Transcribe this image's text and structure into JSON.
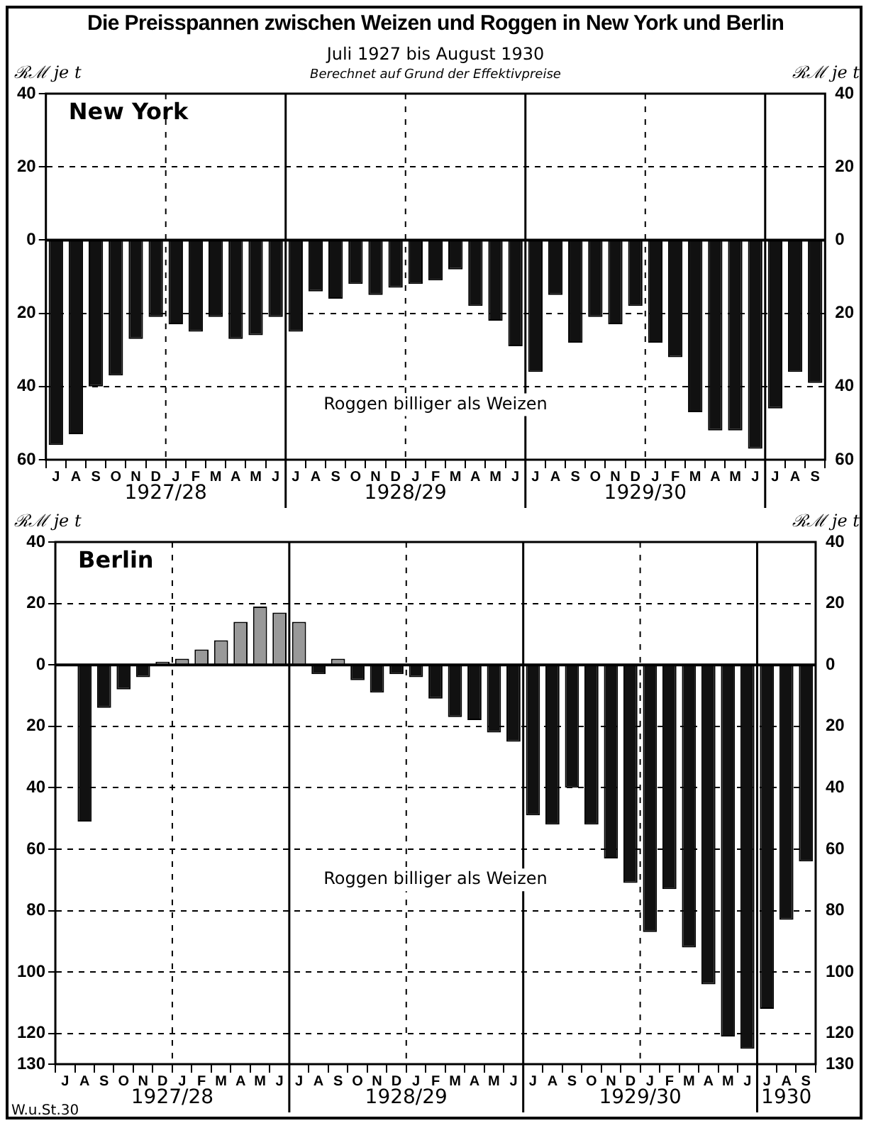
{
  "chart_data": [
    {
      "type": "bar",
      "title": "Die Preisspannen zwischen Weizen und Roggen in New York und Berlin",
      "subtitle": "Juli 1927 bis August 1930",
      "ylabel": "ℛℳ je t",
      "y2label": "ℛℳ je t",
      "annotations": [
        "Berechnet auf Grund der Effektivpreise",
        "Roggen billiger als Weizen",
        "1927/28",
        "1928/29",
        "1929/30"
      ],
      "categories": [
        "J",
        "A",
        "S",
        "O",
        "N",
        "D",
        "J",
        "F",
        "M",
        "A",
        "M",
        "J",
        "J",
        "A",
        "S",
        "O",
        "N",
        "D",
        "J",
        "F",
        "M",
        "A",
        "M",
        "J",
        "J",
        "A",
        "S",
        "O",
        "N",
        "D",
        "J",
        "F",
        "M",
        "A",
        "M",
        "J",
        "J",
        "A",
        "S"
      ],
      "series": [
        {
          "name": "New York",
          "color": "#111111",
          "values": [
            -56,
            -53,
            -40,
            -37,
            -27,
            -21,
            -23,
            -25,
            -21,
            -27,
            -26,
            -21,
            -25,
            -14,
            -16,
            -12,
            -15,
            -13,
            -12,
            -11,
            -8,
            -18,
            -22,
            -29,
            -36,
            -15,
            -28,
            -21,
            -23,
            -18,
            -28,
            -32,
            -47,
            -52,
            -52,
            -57,
            -46,
            -36,
            -39
          ]
        }
      ],
      "ylim": [
        -60,
        40
      ],
      "yticks": [
        {
          "value": -60,
          "label": "60"
        },
        {
          "value": -40,
          "label": "40"
        },
        {
          "value": -20,
          "label": "20"
        },
        0,
        20,
        40
      ],
      "y2lim": [
        -60,
        40
      ],
      "y2ticks": [
        {
          "value": -60,
          "label": "60"
        },
        {
          "value": -40,
          "label": "40"
        },
        {
          "value": -20,
          "label": "20"
        },
        0,
        20,
        40
      ],
      "grid": "y",
      "legend": false
    },
    {
      "type": "bar",
      "ylabel": "ℛℳ je t",
      "y2label": "ℛℳ je t",
      "annotations": [
        "Roggen billiger als Weizen",
        "1927/28",
        "1928/29",
        "1929/30",
        "1930",
        "W.u.St.30"
      ],
      "categories": [
        "J",
        "A",
        "S",
        "O",
        "N",
        "D",
        "J",
        "F",
        "M",
        "A",
        "M",
        "J",
        "J",
        "A",
        "S",
        "O",
        "N",
        "D",
        "J",
        "F",
        "M",
        "A",
        "M",
        "J",
        "J",
        "A",
        "S",
        "O",
        "N",
        "D",
        "J",
        "F",
        "M",
        "A",
        "M",
        "J",
        "J",
        "A",
        "S"
      ],
      "series": [
        {
          "name": "Berlin",
          "values": [
            null,
            -51,
            -14,
            -8,
            -4,
            1,
            2,
            5,
            8,
            14,
            19,
            17,
            14,
            -3,
            2,
            -5,
            -9,
            -3,
            -4,
            -11,
            -17,
            -18,
            -22,
            -25,
            -49,
            -52,
            -40,
            -52,
            -63,
            -71,
            -87,
            -73,
            -92,
            -104,
            -121,
            -125,
            -112,
            -83,
            -64
          ],
          "colors": [
            "#111111",
            "#111111",
            "#111111",
            "#111111",
            "#111111",
            "#999999",
            "#999999",
            "#999999",
            "#999999",
            "#999999",
            "#999999",
            "#999999",
            "#999999",
            "#111111",
            "#999999",
            "#111111",
            "#111111",
            "#111111",
            "#111111",
            "#111111",
            "#111111",
            "#111111",
            "#111111",
            "#111111",
            "#111111",
            "#111111",
            "#111111",
            "#111111",
            "#111111",
            "#111111",
            "#111111",
            "#111111",
            "#111111",
            "#111111",
            "#111111",
            "#111111",
            "#111111",
            "#111111",
            "#111111"
          ]
        }
      ],
      "ylim": [
        -130,
        40
      ],
      "yticks": [
        {
          "value": -130,
          "label": "130"
        },
        {
          "value": -120,
          "label": "120"
        },
        {
          "value": -100,
          "label": "100"
        },
        {
          "value": -80,
          "label": "80"
        },
        {
          "value": -60,
          "label": "60"
        },
        {
          "value": -40,
          "label": "40"
        },
        {
          "value": -20,
          "label": "20"
        },
        0,
        20,
        40
      ],
      "y2lim": [
        -130,
        40
      ],
      "y2ticks": [
        {
          "value": -130,
          "label": "130"
        },
        {
          "value": -120,
          "label": "120"
        },
        {
          "value": -100,
          "label": "100"
        },
        {
          "value": -80,
          "label": "80"
        },
        {
          "value": -60,
          "label": "60"
        },
        {
          "value": -40,
          "label": "40"
        },
        {
          "value": -20,
          "label": "20"
        },
        0,
        20,
        40
      ],
      "grid": "y",
      "legend": false
    }
  ]
}
